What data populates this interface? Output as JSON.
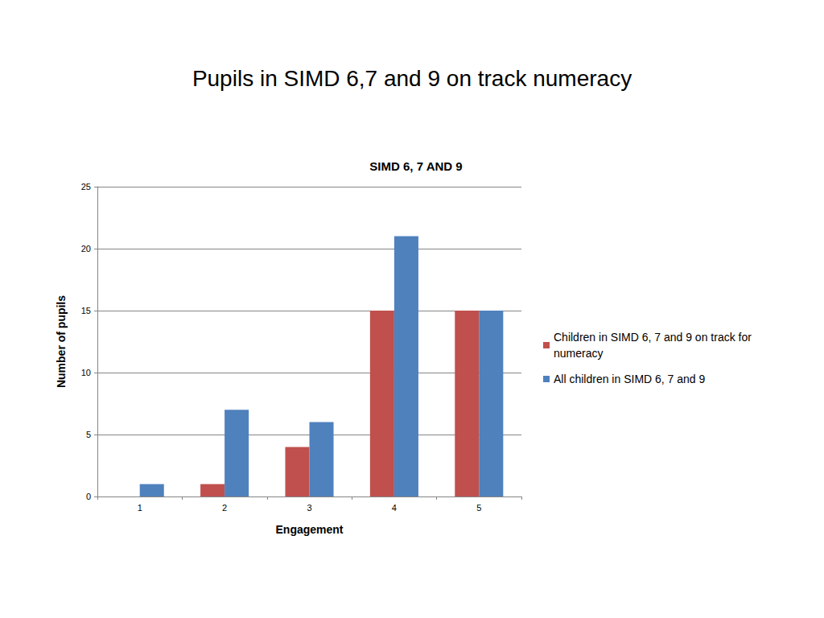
{
  "heading": "Pupils in SIMD 6,7 and 9 on track numeracy",
  "chart_data": {
    "type": "bar",
    "title": "SIMD 6, 7 AND 9",
    "x_label": "Engagement",
    "y_label": "Number of pupils",
    "categories": [
      "1",
      "2",
      "3",
      "4",
      "5"
    ],
    "series": [
      {
        "name": "Children in SIMD 6, 7 and 9 on track for numeracy",
        "color": "#c0504d",
        "values": [
          0,
          1,
          4,
          15,
          15
        ]
      },
      {
        "name": "All children in SIMD 6, 7 and 9",
        "color": "#4f81bd",
        "values": [
          1,
          7,
          6,
          21,
          15
        ]
      }
    ],
    "ylim": [
      0,
      25
    ],
    "yticks": [
      0,
      5,
      10,
      15,
      20,
      25
    ],
    "grid": true,
    "legend": "right"
  }
}
